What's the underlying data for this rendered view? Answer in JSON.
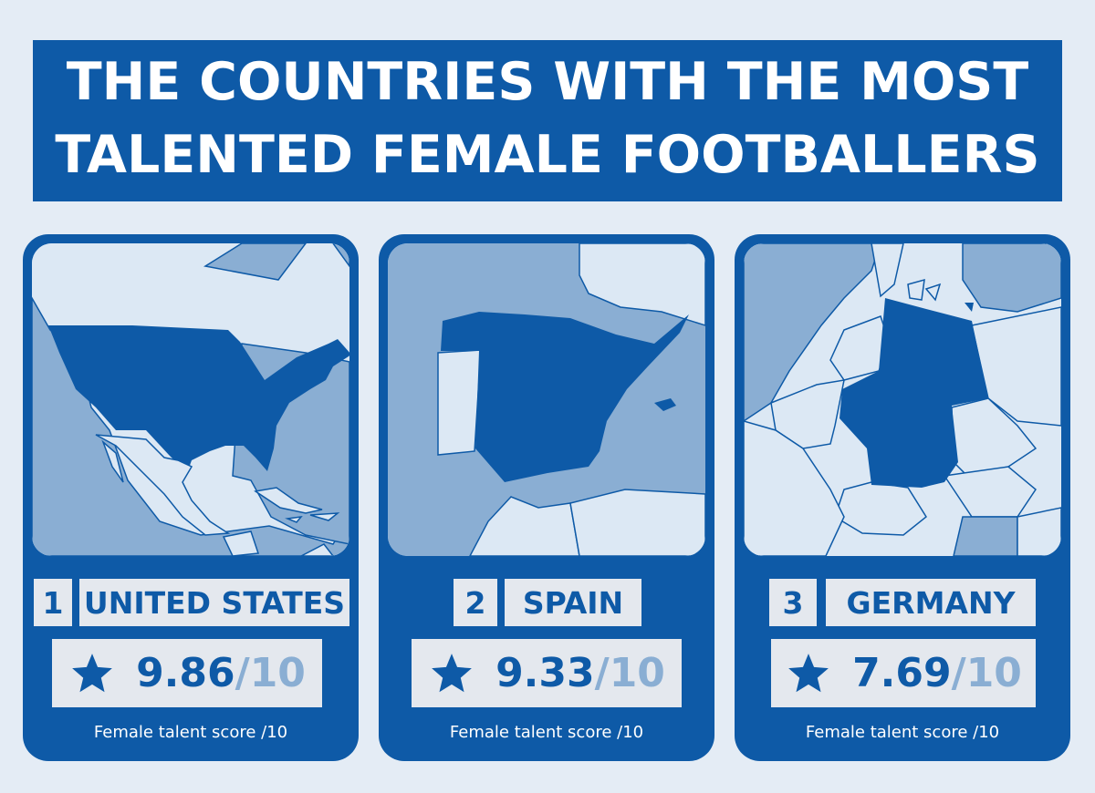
{
  "title": {
    "line1": "THE COUNTRIES WITH THE MOST",
    "line2": "TALENTED FEMALE FOOTBALLERS"
  },
  "colors": {
    "brand_blue": "#0e5aa7",
    "light_blue": "#8aaed3",
    "panel_grey": "#e4e8ee",
    "background": "#e4ecf5"
  },
  "cards": [
    {
      "rank": "1",
      "country": "UNITED STATES",
      "score": "9.86",
      "score_max": "/10",
      "caption": "Female talent score /10",
      "icon": "star-icon",
      "map": "usa-map"
    },
    {
      "rank": "2",
      "country": "SPAIN",
      "score": "9.33",
      "score_max": "/10",
      "caption": "Female talent score /10",
      "icon": "star-icon",
      "map": "spain-map"
    },
    {
      "rank": "3",
      "country": "GERMANY",
      "score": "7.69",
      "score_max": "/10",
      "caption": "Female talent score /10",
      "icon": "star-icon",
      "map": "germany-map"
    }
  ]
}
